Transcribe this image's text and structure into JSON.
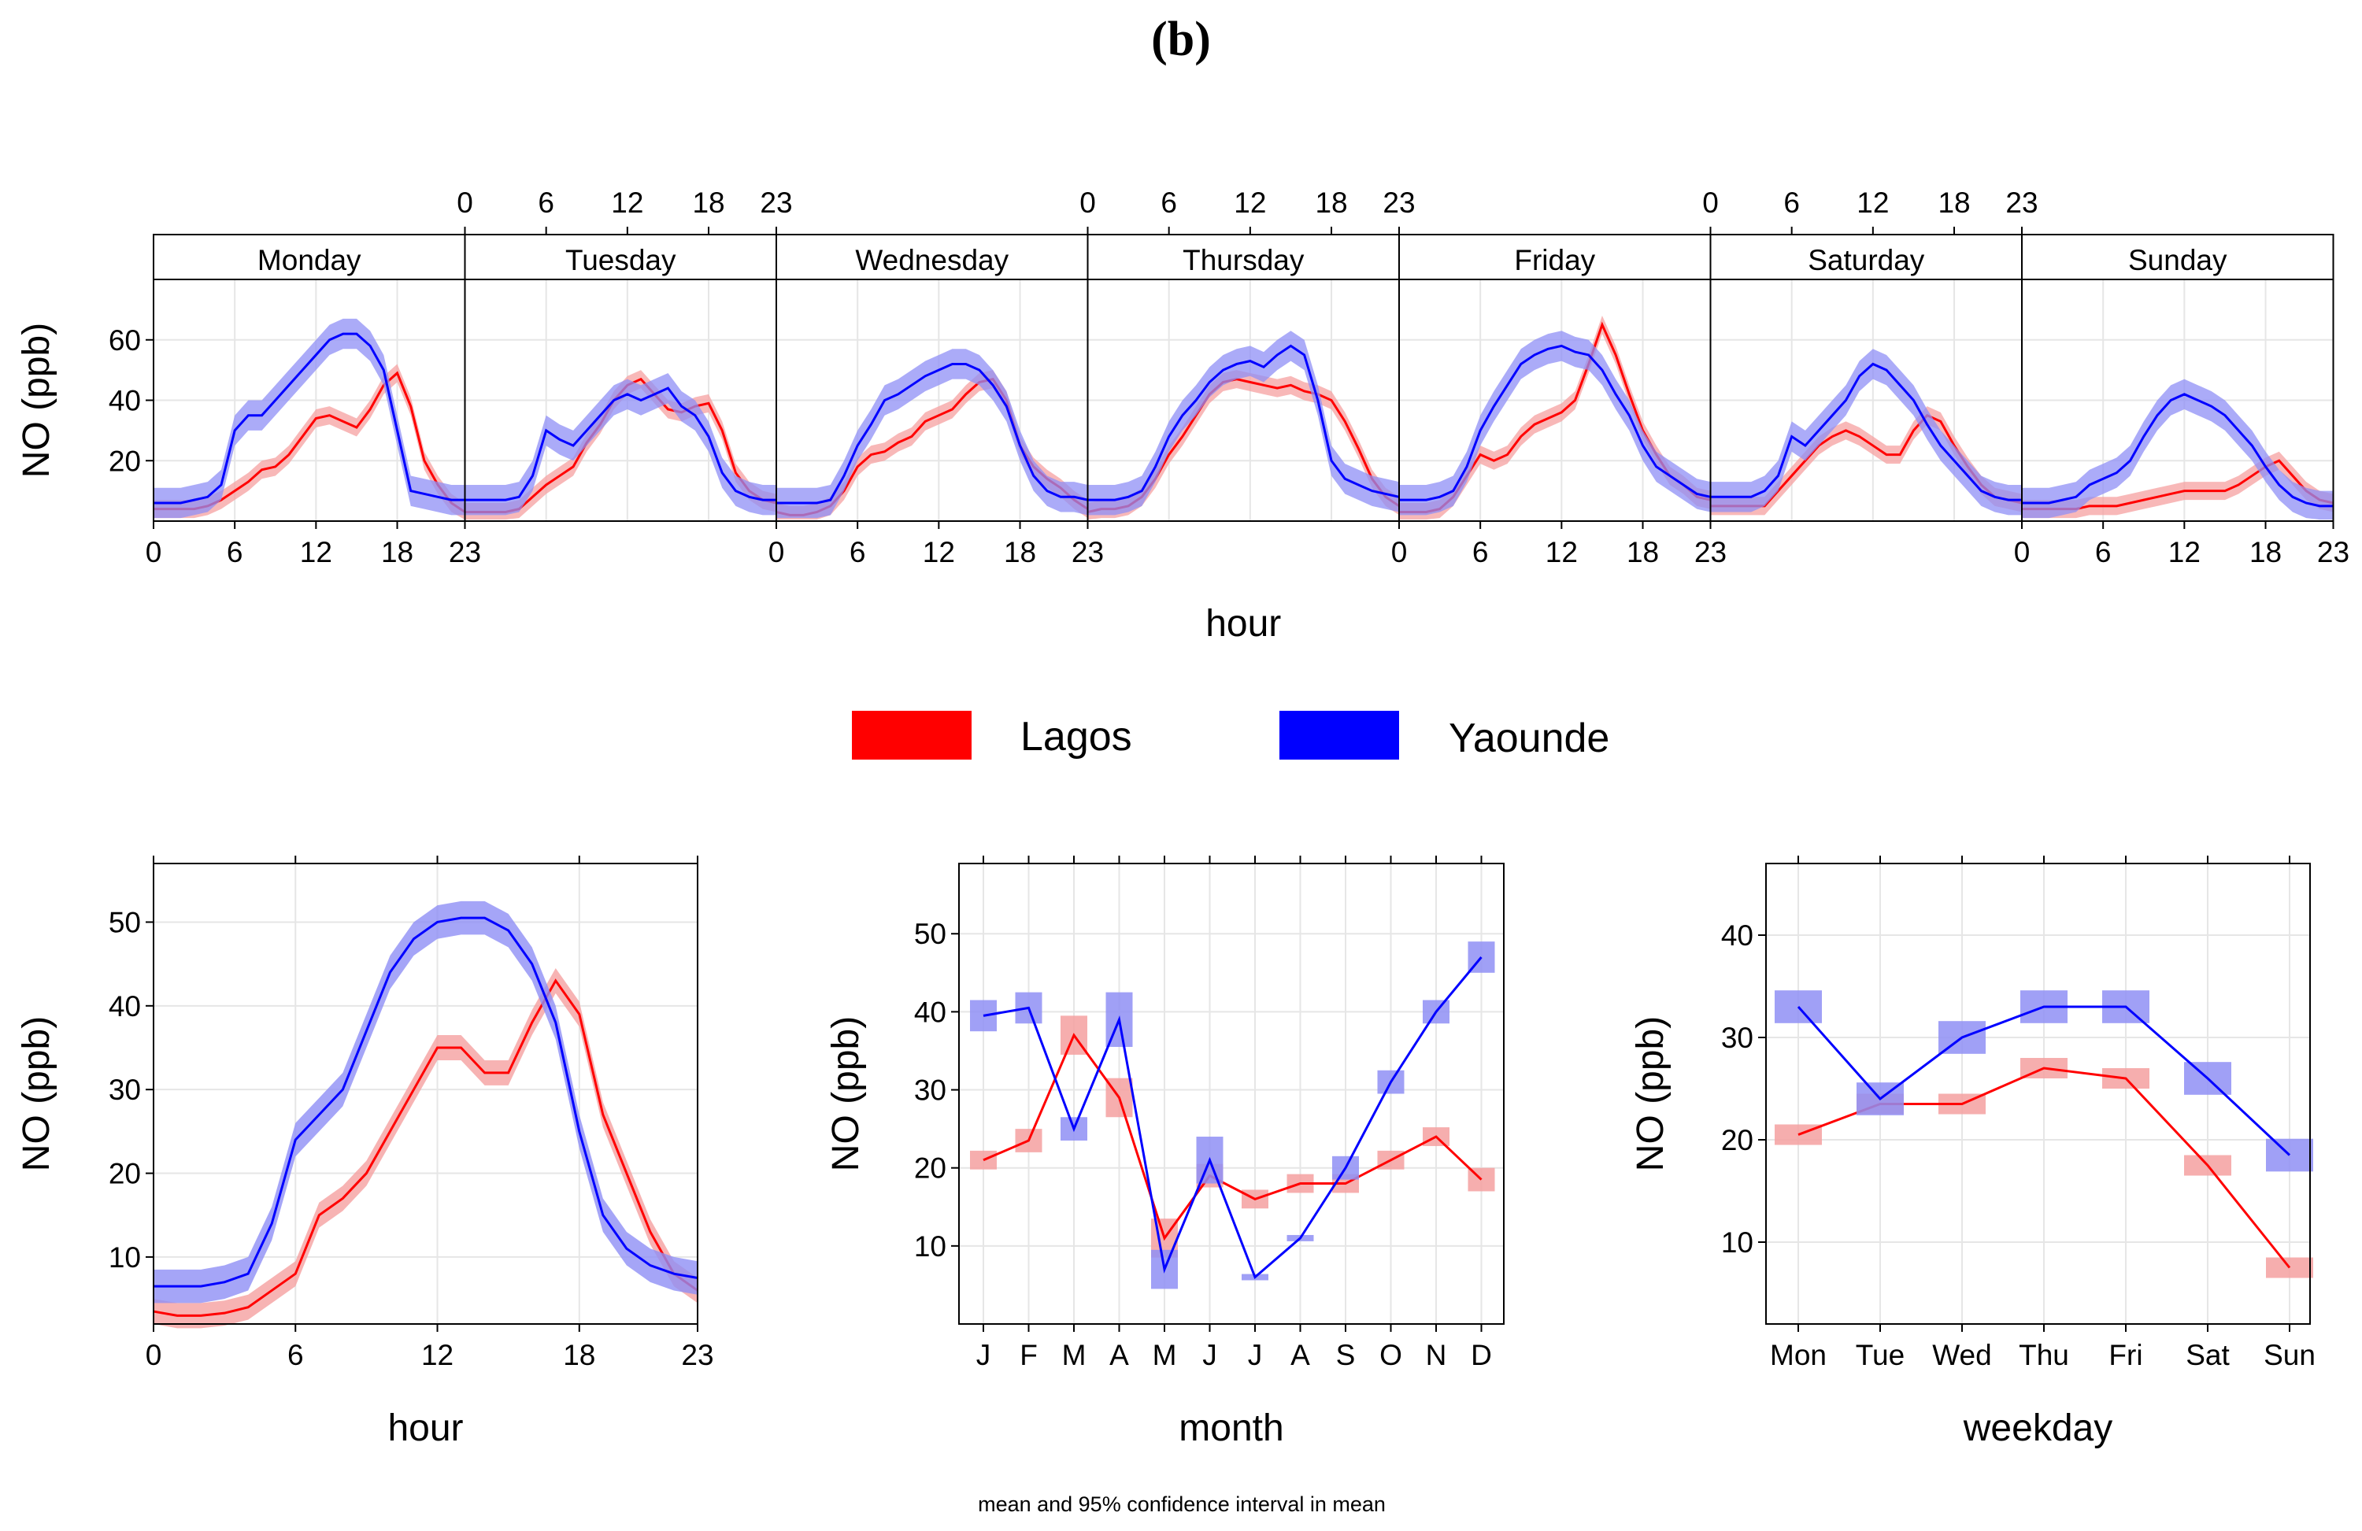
{
  "figure_label": "(b)",
  "footnote": "mean and 95% confidence interval in mean",
  "legend": [
    {
      "name": "Lagos",
      "color": "#ff0000"
    },
    {
      "name": "Yaounde",
      "color": "#0000ff"
    }
  ],
  "colors": {
    "lagos_line": "#ff0000",
    "lagos_band": "#f5a0a0",
    "yaounde_line": "#0000ff",
    "yaounde_band": "#8f8ff5"
  },
  "chart_data": [
    {
      "type": "line",
      "id": "weekly",
      "xlabel": "hour",
      "ylabel": "NO (ppb)",
      "ylim": [
        0,
        80
      ],
      "yticks": [
        20,
        40,
        60
      ],
      "xticks": [
        0,
        6,
        12,
        18,
        23
      ],
      "panels": [
        "Monday",
        "Tuesday",
        "Wednesday",
        "Thursday",
        "Friday",
        "Saturday",
        "Sunday"
      ],
      "series": [
        {
          "name": "Lagos",
          "band_halfwidth": 3,
          "values": [
            [
              4,
              4,
              4,
              4,
              5,
              7,
              10,
              13,
              17,
              18,
              22,
              28,
              34,
              35,
              33,
              31,
              37,
              45,
              49,
              38,
              20,
              12,
              6,
              3
            ],
            [
              3,
              3,
              3,
              3,
              4,
              8,
              12,
              15,
              18,
              26,
              32,
              40,
              45,
              47,
              42,
              37,
              36,
              38,
              39,
              30,
              16,
              10,
              7,
              6
            ],
            [
              3,
              2,
              2,
              3,
              5,
              10,
              18,
              22,
              23,
              26,
              28,
              33,
              35,
              37,
              42,
              46,
              47,
              40,
              25,
              18,
              14,
              11,
              7,
              4
            ],
            [
              3,
              4,
              4,
              5,
              8,
              14,
              22,
              28,
              35,
              42,
              46,
              47,
              46,
              45,
              44,
              45,
              43,
              42,
              40,
              33,
              24,
              14,
              8,
              5
            ],
            [
              3,
              3,
              3,
              4,
              8,
              15,
              22,
              20,
              22,
              28,
              32,
              34,
              36,
              40,
              52,
              65,
              55,
              42,
              30,
              22,
              15,
              12,
              8,
              7
            ],
            [
              5,
              5,
              5,
              5,
              5,
              10,
              15,
              20,
              25,
              28,
              30,
              28,
              25,
              22,
              22,
              30,
              35,
              33,
              25,
              18,
              12,
              8,
              7,
              6
            ],
            [
              4,
              4,
              4,
              4,
              4,
              5,
              5,
              5,
              6,
              7,
              8,
              9,
              10,
              10,
              10,
              10,
              12,
              15,
              18,
              20,
              15,
              10,
              7,
              6
            ]
          ]
        },
        {
          "name": "Yaounde",
          "band_halfwidth": 5,
          "values": [
            [
              6,
              6,
              6,
              7,
              8,
              12,
              30,
              35,
              35,
              40,
              45,
              50,
              55,
              60,
              62,
              62,
              58,
              50,
              30,
              10,
              9,
              8,
              7,
              7
            ],
            [
              7,
              7,
              7,
              7,
              8,
              15,
              30,
              27,
              25,
              30,
              35,
              40,
              42,
              40,
              42,
              44,
              38,
              35,
              28,
              16,
              10,
              8,
              7,
              7
            ],
            [
              6,
              6,
              6,
              6,
              7,
              15,
              25,
              32,
              40,
              42,
              45,
              48,
              50,
              52,
              52,
              50,
              45,
              38,
              25,
              15,
              10,
              8,
              8,
              7
            ],
            [
              7,
              7,
              7,
              8,
              10,
              18,
              28,
              35,
              40,
              46,
              50,
              52,
              53,
              51,
              55,
              58,
              55,
              40,
              20,
              14,
              12,
              10,
              9,
              8
            ],
            [
              7,
              7,
              7,
              8,
              10,
              18,
              30,
              38,
              45,
              52,
              55,
              57,
              58,
              56,
              55,
              50,
              42,
              35,
              25,
              18,
              15,
              12,
              9,
              8
            ],
            [
              8,
              8,
              8,
              8,
              10,
              15,
              28,
              25,
              30,
              35,
              40,
              48,
              52,
              50,
              45,
              40,
              32,
              25,
              20,
              15,
              10,
              8,
              7,
              7
            ],
            [
              6,
              6,
              6,
              7,
              8,
              12,
              14,
              16,
              20,
              28,
              35,
              40,
              42,
              40,
              38,
              35,
              30,
              25,
              18,
              12,
              8,
              6,
              5,
              5
            ]
          ]
        }
      ]
    },
    {
      "type": "line",
      "id": "hour",
      "xlabel": "hour",
      "ylabel": "NO (ppb)",
      "ylim": [
        2,
        57
      ],
      "yticks": [
        10,
        20,
        30,
        40,
        50
      ],
      "xticks": [
        0,
        6,
        12,
        18,
        23
      ],
      "x": [
        0,
        1,
        2,
        3,
        4,
        5,
        6,
        7,
        8,
        9,
        10,
        11,
        12,
        13,
        14,
        15,
        16,
        17,
        18,
        19,
        20,
        21,
        22,
        23
      ],
      "series": [
        {
          "name": "Lagos",
          "band_halfwidth": 1.5,
          "values": [
            3.5,
            3,
            3,
            3.3,
            4,
            6,
            8,
            15,
            17,
            20,
            25,
            30,
            35,
            35,
            32,
            32,
            38,
            43,
            39,
            27,
            20,
            13,
            8,
            6
          ]
        },
        {
          "name": "Yaounde",
          "band_halfwidth": 2,
          "values": [
            6.5,
            6.5,
            6.5,
            7,
            8,
            14,
            24,
            27,
            30,
            37,
            44,
            48,
            50,
            50.5,
            50.5,
            49,
            45,
            38,
            25,
            15,
            11,
            9,
            8,
            7.5
          ]
        }
      ]
    },
    {
      "type": "line",
      "id": "month",
      "xlabel": "month",
      "ylabel": "NO (ppb)",
      "ylim": [
        0,
        59
      ],
      "yticks": [
        10,
        20,
        30,
        40,
        50
      ],
      "categories": [
        "J",
        "F",
        "M",
        "A",
        "M",
        "J",
        "J",
        "A",
        "S",
        "O",
        "N",
        "D"
      ],
      "series": [
        {
          "name": "Lagos",
          "values": [
            21,
            23.5,
            37,
            29,
            11,
            19,
            16,
            18,
            18,
            21,
            24,
            18.5
          ],
          "band_halfwidth": [
            1.2,
            1.5,
            2.5,
            2.5,
            2.5,
            1.5,
            1.2,
            1.2,
            1.2,
            1.2,
            1.2,
            1.5
          ]
        },
        {
          "name": "Yaounde",
          "values": [
            39.5,
            40.5,
            25,
            39,
            7,
            21,
            6,
            11,
            20,
            31,
            40,
            47
          ],
          "band_halfwidth": [
            2,
            2,
            1.5,
            3.5,
            2.5,
            3,
            0.4,
            0.4,
            1.5,
            1.5,
            1.5,
            2
          ]
        }
      ]
    },
    {
      "type": "line",
      "id": "weekday",
      "xlabel": "weekday",
      "ylabel": "NO (ppb)",
      "ylim": [
        2,
        47
      ],
      "yticks": [
        10,
        20,
        30,
        40
      ],
      "categories": [
        "Mon",
        "Tue",
        "Wed",
        "Thu",
        "Fri",
        "Sat",
        "Sun"
      ],
      "series": [
        {
          "name": "Lagos",
          "values": [
            20.5,
            23.5,
            23.5,
            27,
            26,
            17.5,
            7.5
          ],
          "band_halfwidth": 1
        },
        {
          "name": "Yaounde",
          "values": [
            33,
            24,
            30,
            33,
            33,
            26,
            18.5
          ],
          "band_halfwidth": 1.6
        }
      ]
    }
  ]
}
